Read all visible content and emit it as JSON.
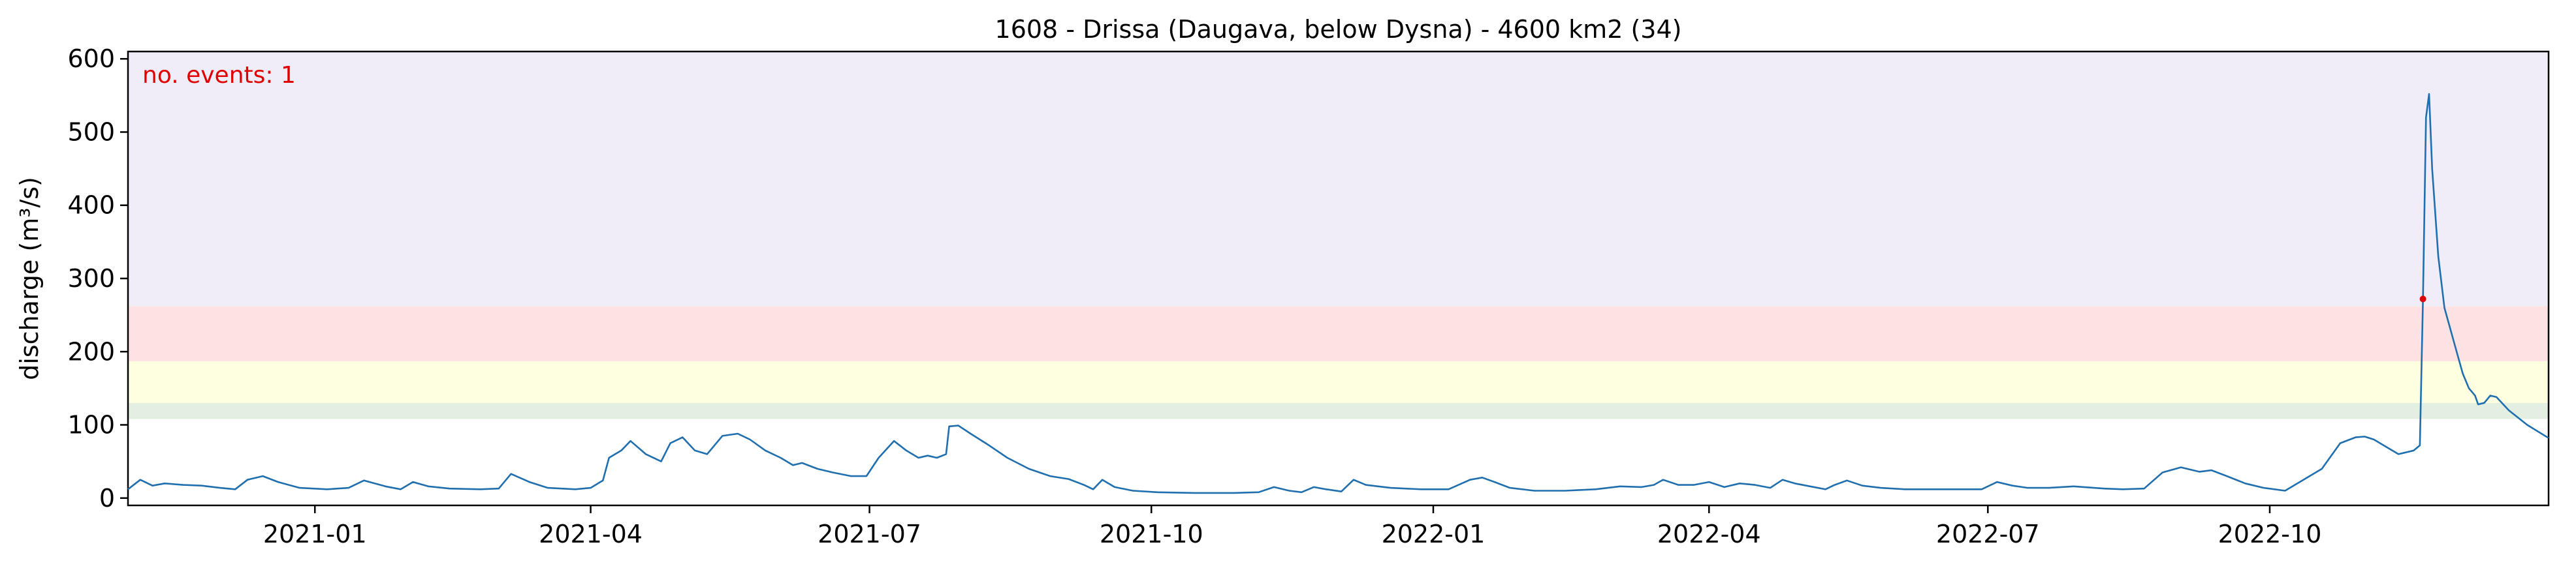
{
  "chart_data": {
    "type": "line",
    "title": "1608 - Drissa (Daugava, below Dysna) - 4600 km2 (34)",
    "xlabel": "",
    "ylabel": "discharge (m³/s)",
    "xlim": [
      "2020-11-01",
      "2022-12-31"
    ],
    "ylim": [
      -10,
      610
    ],
    "y_ticks": [
      0,
      100,
      200,
      300,
      400,
      500,
      600
    ],
    "x_ticks": [
      "2021-01",
      "2021-04",
      "2021-07",
      "2021-10",
      "2022-01",
      "2022-04",
      "2022-07",
      "2022-10"
    ],
    "grid": false,
    "threshold_bands": [
      {
        "from": 108,
        "to": 130,
        "color": "#e3efe0"
      },
      {
        "from": 130,
        "to": 187,
        "color": "#fefee0"
      },
      {
        "from": 187,
        "to": 262,
        "color": "#fde2e4"
      },
      {
        "from": 262,
        "to": 610,
        "color": "#f0edf9"
      }
    ],
    "annotation": {
      "text": "no. events: 1",
      "color": "#e00000"
    },
    "series": [
      {
        "color": "#1f6faf",
        "points": [
          [
            "2020-11-01",
            12
          ],
          [
            "2020-11-05",
            25
          ],
          [
            "2020-11-09",
            17
          ],
          [
            "2020-11-13",
            20
          ],
          [
            "2020-11-19",
            18
          ],
          [
            "2020-11-25",
            17
          ],
          [
            "2020-12-01",
            14
          ],
          [
            "2020-12-06",
            12
          ],
          [
            "2020-12-10",
            25
          ],
          [
            "2020-12-15",
            30
          ],
          [
            "2020-12-20",
            22
          ],
          [
            "2020-12-27",
            14
          ],
          [
            "2021-01-05",
            12
          ],
          [
            "2021-01-12",
            14
          ],
          [
            "2021-01-17",
            24
          ],
          [
            "2021-01-24",
            16
          ],
          [
            "2021-01-29",
            12
          ],
          [
            "2021-02-02",
            22
          ],
          [
            "2021-02-07",
            16
          ],
          [
            "2021-02-14",
            13
          ],
          [
            "2021-02-24",
            12
          ],
          [
            "2021-03-02",
            13
          ],
          [
            "2021-03-06",
            33
          ],
          [
            "2021-03-12",
            22
          ],
          [
            "2021-03-18",
            14
          ],
          [
            "2021-03-27",
            12
          ],
          [
            "2021-04-01",
            14
          ],
          [
            "2021-04-05",
            24
          ],
          [
            "2021-04-07",
            55
          ],
          [
            "2021-04-11",
            65
          ],
          [
            "2021-04-14",
            78
          ],
          [
            "2021-04-19",
            60
          ],
          [
            "2021-04-24",
            50
          ],
          [
            "2021-04-27",
            75
          ],
          [
            "2021-05-01",
            83
          ],
          [
            "2021-05-05",
            65
          ],
          [
            "2021-05-09",
            60
          ],
          [
            "2021-05-14",
            85
          ],
          [
            "2021-05-19",
            88
          ],
          [
            "2021-05-23",
            80
          ],
          [
            "2021-05-28",
            65
          ],
          [
            "2021-06-02",
            55
          ],
          [
            "2021-06-06",
            45
          ],
          [
            "2021-06-09",
            48
          ],
          [
            "2021-06-14",
            40
          ],
          [
            "2021-06-19",
            35
          ],
          [
            "2021-06-25",
            30
          ],
          [
            "2021-06-30",
            30
          ],
          [
            "2021-07-04",
            55
          ],
          [
            "2021-07-09",
            78
          ],
          [
            "2021-07-13",
            65
          ],
          [
            "2021-07-17",
            55
          ],
          [
            "2021-07-20",
            58
          ],
          [
            "2021-07-23",
            55
          ],
          [
            "2021-07-26",
            60
          ],
          [
            "2021-07-27",
            98
          ],
          [
            "2021-07-30",
            99
          ],
          [
            "2021-08-03",
            88
          ],
          [
            "2021-08-09",
            72
          ],
          [
            "2021-08-15",
            55
          ],
          [
            "2021-08-22",
            40
          ],
          [
            "2021-08-29",
            30
          ],
          [
            "2021-09-04",
            26
          ],
          [
            "2021-09-09",
            18
          ],
          [
            "2021-09-12",
            12
          ],
          [
            "2021-09-15",
            25
          ],
          [
            "2021-09-19",
            15
          ],
          [
            "2021-09-25",
            10
          ],
          [
            "2021-10-03",
            8
          ],
          [
            "2021-10-15",
            7
          ],
          [
            "2021-10-28",
            7
          ],
          [
            "2021-11-05",
            8
          ],
          [
            "2021-11-10",
            15
          ],
          [
            "2021-11-15",
            10
          ],
          [
            "2021-11-19",
            8
          ],
          [
            "2021-11-23",
            15
          ],
          [
            "2021-11-27",
            12
          ],
          [
            "2021-12-02",
            9
          ],
          [
            "2021-12-06",
            25
          ],
          [
            "2021-12-10",
            18
          ],
          [
            "2021-12-18",
            14
          ],
          [
            "2021-12-28",
            12
          ],
          [
            "2022-01-06",
            12
          ],
          [
            "2022-01-13",
            25
          ],
          [
            "2022-01-17",
            28
          ],
          [
            "2022-01-21",
            22
          ],
          [
            "2022-01-26",
            14
          ],
          [
            "2022-02-03",
            10
          ],
          [
            "2022-02-13",
            10
          ],
          [
            "2022-02-23",
            12
          ],
          [
            "2022-03-03",
            16
          ],
          [
            "2022-03-10",
            15
          ],
          [
            "2022-03-14",
            18
          ],
          [
            "2022-03-17",
            25
          ],
          [
            "2022-03-22",
            18
          ],
          [
            "2022-03-27",
            18
          ],
          [
            "2022-04-01",
            22
          ],
          [
            "2022-04-06",
            15
          ],
          [
            "2022-04-11",
            20
          ],
          [
            "2022-04-16",
            18
          ],
          [
            "2022-04-21",
            14
          ],
          [
            "2022-04-25",
            25
          ],
          [
            "2022-04-29",
            20
          ],
          [
            "2022-05-04",
            16
          ],
          [
            "2022-05-09",
            12
          ],
          [
            "2022-05-12",
            18
          ],
          [
            "2022-05-16",
            24
          ],
          [
            "2022-05-21",
            17
          ],
          [
            "2022-05-27",
            14
          ],
          [
            "2022-06-04",
            12
          ],
          [
            "2022-06-14",
            12
          ],
          [
            "2022-06-22",
            12
          ],
          [
            "2022-06-29",
            12
          ],
          [
            "2022-07-04",
            22
          ],
          [
            "2022-07-09",
            17
          ],
          [
            "2022-07-14",
            14
          ],
          [
            "2022-07-21",
            14
          ],
          [
            "2022-07-29",
            16
          ],
          [
            "2022-08-08",
            13
          ],
          [
            "2022-08-14",
            12
          ],
          [
            "2022-08-21",
            13
          ],
          [
            "2022-08-27",
            35
          ],
          [
            "2022-09-02",
            42
          ],
          [
            "2022-09-08",
            36
          ],
          [
            "2022-09-12",
            38
          ],
          [
            "2022-09-17",
            30
          ],
          [
            "2022-09-23",
            20
          ],
          [
            "2022-09-29",
            14
          ],
          [
            "2022-10-06",
            10
          ],
          [
            "2022-10-12",
            25
          ],
          [
            "2022-10-18",
            40
          ],
          [
            "2022-10-24",
            75
          ],
          [
            "2022-10-29",
            83
          ],
          [
            "2022-11-01",
            84
          ],
          [
            "2022-11-04",
            80
          ],
          [
            "2022-11-08",
            70
          ],
          [
            "2022-11-12",
            60
          ],
          [
            "2022-11-14",
            62
          ],
          [
            "2022-11-17",
            65
          ],
          [
            "2022-11-19",
            72
          ],
          [
            "2022-11-20",
            270
          ],
          [
            "2022-11-21",
            520
          ],
          [
            "2022-11-22",
            552
          ],
          [
            "2022-11-23",
            450
          ],
          [
            "2022-11-25",
            330
          ],
          [
            "2022-11-27",
            260
          ],
          [
            "2022-12-01",
            200
          ],
          [
            "2022-12-03",
            170
          ],
          [
            "2022-12-05",
            150
          ],
          [
            "2022-12-07",
            140
          ],
          [
            "2022-12-08",
            128
          ],
          [
            "2022-12-10",
            130
          ],
          [
            "2022-12-12",
            140
          ],
          [
            "2022-12-14",
            138
          ],
          [
            "2022-12-18",
            120
          ],
          [
            "2022-12-24",
            100
          ],
          [
            "2022-12-31",
            82
          ]
        ]
      }
    ],
    "event_point": {
      "x": "2022-11-20",
      "y": 272
    }
  }
}
